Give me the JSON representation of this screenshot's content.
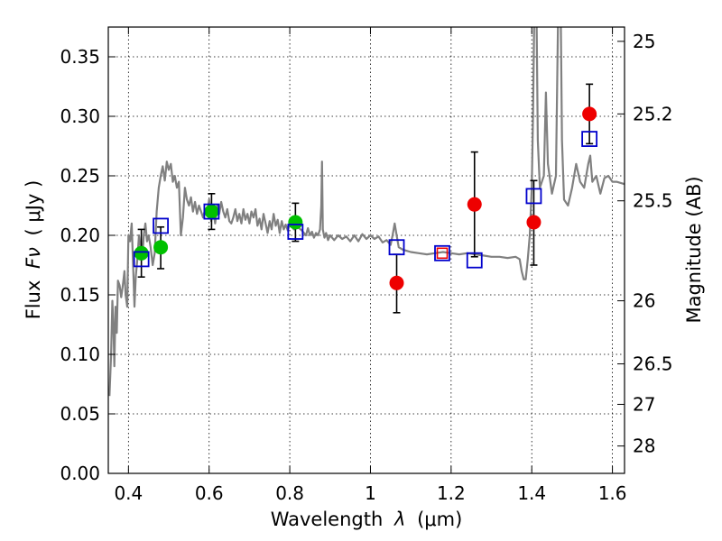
{
  "chart_data": {
    "type": "scatter",
    "title": "",
    "xlabel": "Wavelength",
    "xlabel_symbol": "λ",
    "xlabel_unit": "(μm)",
    "ylabel": "Flux",
    "ylabel_symbol": "Fν",
    "ylabel_unit": "( μJy )",
    "y2label": "Magnitude (AB)",
    "xlim": [
      0.35,
      1.63
    ],
    "ylim": [
      0.0,
      0.375
    ],
    "grid": true,
    "x_ticks": [
      {
        "value": 0.4,
        "label": "0.4"
      },
      {
        "value": 0.6,
        "label": "0.6"
      },
      {
        "value": 0.8,
        "label": "0.8"
      },
      {
        "value": 1.0,
        "label": "1"
      },
      {
        "value": 1.2,
        "label": "1.2"
      },
      {
        "value": 1.4,
        "label": "1.4"
      },
      {
        "value": 1.6,
        "label": "1.6"
      }
    ],
    "y_ticks": [
      {
        "value": 0.0,
        "label": "0.00"
      },
      {
        "value": 0.05,
        "label": "0.05"
      },
      {
        "value": 0.1,
        "label": "0.10"
      },
      {
        "value": 0.15,
        "label": "0.15"
      },
      {
        "value": 0.2,
        "label": "0.20"
      },
      {
        "value": 0.25,
        "label": "0.25"
      },
      {
        "value": 0.3,
        "label": "0.30"
      },
      {
        "value": 0.35,
        "label": "0.35"
      }
    ],
    "y2_ticks": [
      {
        "flux": 0.363,
        "label": "25"
      },
      {
        "flux": 0.302,
        "label": "25.2"
      },
      {
        "flux": 0.229,
        "label": "25.5"
      },
      {
        "flux": 0.145,
        "label": "26"
      },
      {
        "flux": 0.092,
        "label": "26.5"
      },
      {
        "flux": 0.058,
        "label": "27"
      },
      {
        "flux": 0.023,
        "label": "28"
      }
    ],
    "series": [
      {
        "name": "model spectrum",
        "kind": "line",
        "color": "#808080",
        "points": [
          [
            0.353,
            0.065
          ],
          [
            0.357,
            0.1
          ],
          [
            0.36,
            0.145
          ],
          [
            0.363,
            0.12
          ],
          [
            0.365,
            0.09
          ],
          [
            0.368,
            0.14
          ],
          [
            0.371,
            0.118
          ],
          [
            0.374,
            0.162
          ],
          [
            0.378,
            0.158
          ],
          [
            0.382,
            0.148
          ],
          [
            0.386,
            0.158
          ],
          [
            0.39,
            0.17
          ],
          [
            0.393,
            0.15
          ],
          [
            0.397,
            0.14
          ],
          [
            0.4,
            0.2
          ],
          [
            0.404,
            0.195
          ],
          [
            0.408,
            0.21
          ],
          [
            0.412,
            0.17
          ],
          [
            0.415,
            0.14
          ],
          [
            0.418,
            0.165
          ],
          [
            0.422,
            0.18
          ],
          [
            0.426,
            0.2
          ],
          [
            0.43,
            0.19
          ],
          [
            0.434,
            0.18
          ],
          [
            0.438,
            0.2
          ],
          [
            0.442,
            0.21
          ],
          [
            0.446,
            0.195
          ],
          [
            0.45,
            0.2
          ],
          [
            0.455,
            0.19
          ],
          [
            0.46,
            0.175
          ],
          [
            0.465,
            0.185
          ],
          [
            0.47,
            0.22
          ],
          [
            0.475,
            0.24
          ],
          [
            0.48,
            0.25
          ],
          [
            0.485,
            0.258
          ],
          [
            0.49,
            0.246
          ],
          [
            0.495,
            0.262
          ],
          [
            0.5,
            0.255
          ],
          [
            0.505,
            0.26
          ],
          [
            0.51,
            0.245
          ],
          [
            0.515,
            0.25
          ],
          [
            0.52,
            0.24
          ],
          [
            0.525,
            0.245
          ],
          [
            0.53,
            0.2
          ],
          [
            0.535,
            0.215
          ],
          [
            0.54,
            0.24
          ],
          [
            0.545,
            0.23
          ],
          [
            0.55,
            0.225
          ],
          [
            0.555,
            0.232
          ],
          [
            0.56,
            0.22
          ],
          [
            0.565,
            0.228
          ],
          [
            0.57,
            0.218
          ],
          [
            0.575,
            0.225
          ],
          [
            0.58,
            0.22
          ],
          [
            0.585,
            0.215
          ],
          [
            0.59,
            0.222
          ],
          [
            0.595,
            0.218
          ],
          [
            0.6,
            0.23
          ],
          [
            0.605,
            0.212
          ],
          [
            0.61,
            0.222
          ],
          [
            0.615,
            0.21
          ],
          [
            0.62,
            0.225
          ],
          [
            0.625,
            0.218
          ],
          [
            0.63,
            0.228
          ],
          [
            0.635,
            0.22
          ],
          [
            0.64,
            0.215
          ],
          [
            0.645,
            0.222
          ],
          [
            0.65,
            0.212
          ],
          [
            0.655,
            0.21
          ],
          [
            0.66,
            0.215
          ],
          [
            0.665,
            0.222
          ],
          [
            0.67,
            0.212
          ],
          [
            0.675,
            0.218
          ],
          [
            0.68,
            0.21
          ],
          [
            0.685,
            0.222
          ],
          [
            0.69,
            0.213
          ],
          [
            0.695,
            0.218
          ],
          [
            0.7,
            0.21
          ],
          [
            0.705,
            0.22
          ],
          [
            0.71,
            0.215
          ],
          [
            0.715,
            0.222
          ],
          [
            0.72,
            0.208
          ],
          [
            0.725,
            0.214
          ],
          [
            0.73,
            0.205
          ],
          [
            0.735,
            0.218
          ],
          [
            0.74,
            0.21
          ],
          [
            0.745,
            0.202
          ],
          [
            0.75,
            0.212
          ],
          [
            0.755,
            0.205
          ],
          [
            0.76,
            0.218
          ],
          [
            0.765,
            0.208
          ],
          [
            0.77,
            0.213
          ],
          [
            0.775,
            0.202
          ],
          [
            0.78,
            0.212
          ],
          [
            0.785,
            0.205
          ],
          [
            0.79,
            0.209
          ],
          [
            0.795,
            0.204
          ],
          [
            0.8,
            0.21
          ],
          [
            0.81,
            0.205
          ],
          [
            0.82,
            0.207
          ],
          [
            0.83,
            0.204
          ],
          [
            0.84,
            0.2
          ],
          [
            0.845,
            0.206
          ],
          [
            0.85,
            0.2
          ],
          [
            0.855,
            0.203
          ],
          [
            0.86,
            0.198
          ],
          [
            0.865,
            0.202
          ],
          [
            0.87,
            0.2
          ],
          [
            0.875,
            0.205
          ],
          [
            0.878,
            0.225
          ],
          [
            0.88,
            0.262
          ],
          [
            0.882,
            0.205
          ],
          [
            0.886,
            0.198
          ],
          [
            0.89,
            0.202
          ],
          [
            0.895,
            0.196
          ],
          [
            0.9,
            0.2
          ],
          [
            0.91,
            0.196
          ],
          [
            0.92,
            0.2
          ],
          [
            0.93,
            0.197
          ],
          [
            0.94,
            0.199
          ],
          [
            0.95,
            0.195
          ],
          [
            0.96,
            0.2
          ],
          [
            0.97,
            0.195
          ],
          [
            0.98,
            0.201
          ],
          [
            0.99,
            0.197
          ],
          [
            1.0,
            0.2
          ],
          [
            1.01,
            0.197
          ],
          [
            1.02,
            0.199
          ],
          [
            1.03,
            0.194
          ],
          [
            1.04,
            0.196
          ],
          [
            1.05,
            0.192
          ],
          [
            1.055,
            0.2
          ],
          [
            1.06,
            0.21
          ],
          [
            1.065,
            0.2
          ],
          [
            1.07,
            0.19
          ],
          [
            1.08,
            0.188
          ],
          [
            1.09,
            0.187
          ],
          [
            1.1,
            0.186
          ],
          [
            1.12,
            0.185
          ],
          [
            1.14,
            0.184
          ],
          [
            1.16,
            0.185
          ],
          [
            1.18,
            0.186
          ],
          [
            1.2,
            0.185
          ],
          [
            1.22,
            0.184
          ],
          [
            1.24,
            0.185
          ],
          [
            1.26,
            0.184
          ],
          [
            1.28,
            0.183
          ],
          [
            1.3,
            0.182
          ],
          [
            1.32,
            0.182
          ],
          [
            1.34,
            0.181
          ],
          [
            1.36,
            0.182
          ],
          [
            1.37,
            0.18
          ],
          [
            1.375,
            0.17
          ],
          [
            1.38,
            0.163
          ],
          [
            1.385,
            0.163
          ],
          [
            1.39,
            0.18
          ],
          [
            1.395,
            0.2
          ],
          [
            1.4,
            0.24
          ],
          [
            1.403,
            0.3
          ],
          [
            1.406,
            0.38
          ],
          [
            1.412,
            0.38
          ],
          [
            1.415,
            0.28
          ],
          [
            1.42,
            0.24
          ],
          [
            1.43,
            0.25
          ],
          [
            1.435,
            0.32
          ],
          [
            1.44,
            0.26
          ],
          [
            1.45,
            0.235
          ],
          [
            1.46,
            0.25
          ],
          [
            1.465,
            0.38
          ],
          [
            1.472,
            0.38
          ],
          [
            1.475,
            0.28
          ],
          [
            1.48,
            0.23
          ],
          [
            1.49,
            0.225
          ],
          [
            1.5,
            0.24
          ],
          [
            1.51,
            0.26
          ],
          [
            1.52,
            0.245
          ],
          [
            1.53,
            0.24
          ],
          [
            1.54,
            0.26
          ],
          [
            1.545,
            0.267
          ],
          [
            1.55,
            0.245
          ],
          [
            1.56,
            0.25
          ],
          [
            1.57,
            0.235
          ],
          [
            1.58,
            0.248
          ],
          [
            1.59,
            0.25
          ],
          [
            1.6,
            0.245
          ],
          [
            1.61,
            0.245
          ],
          [
            1.63,
            0.243
          ]
        ]
      },
      {
        "name": "green photometry",
        "kind": "points",
        "marker": "circle",
        "color": "#00c000",
        "points": [
          {
            "x": 0.432,
            "y": 0.185,
            "yerr": [
              0.165,
              0.205
            ]
          },
          {
            "x": 0.48,
            "y": 0.19,
            "yerr": [
              0.172,
              0.207
            ]
          },
          {
            "x": 0.606,
            "y": 0.22,
            "yerr": [
              0.205,
              0.235
            ]
          },
          {
            "x": 0.814,
            "y": 0.211,
            "yerr": [
              0.195,
              0.227
            ]
          }
        ]
      },
      {
        "name": "red photometry",
        "kind": "points",
        "marker": "circle",
        "color": "#ee0000",
        "points": [
          {
            "x": 1.065,
            "y": 0.16,
            "yerr": [
              0.135,
              0.184
            ]
          },
          {
            "x": 1.258,
            "y": 0.226,
            "yerr": [
              0.182,
              0.27
            ]
          },
          {
            "x": 1.405,
            "y": 0.211,
            "yerr": [
              0.175,
              0.246
            ]
          },
          {
            "x": 1.543,
            "y": 0.302,
            "yerr": [
              0.277,
              0.327
            ]
          }
        ]
      },
      {
        "name": "model synthetic photometry",
        "kind": "points",
        "marker": "square",
        "color": "#0000cc",
        "points": [
          {
            "x": 0.432,
            "y": 0.18
          },
          {
            "x": 0.48,
            "y": 0.208
          },
          {
            "x": 0.606,
            "y": 0.22
          },
          {
            "x": 0.814,
            "y": 0.203
          },
          {
            "x": 1.065,
            "y": 0.19
          },
          {
            "x": 1.258,
            "y": 0.179
          },
          {
            "x": 1.405,
            "y": 0.233
          },
          {
            "x": 1.543,
            "y": 0.281
          }
        ]
      },
      {
        "name": "highlighted point",
        "kind": "points",
        "marker": "square-filled",
        "color": "#0000cc",
        "fill": "#ee0000",
        "points": [
          {
            "x": 1.178,
            "y": 0.185
          }
        ]
      }
    ]
  }
}
